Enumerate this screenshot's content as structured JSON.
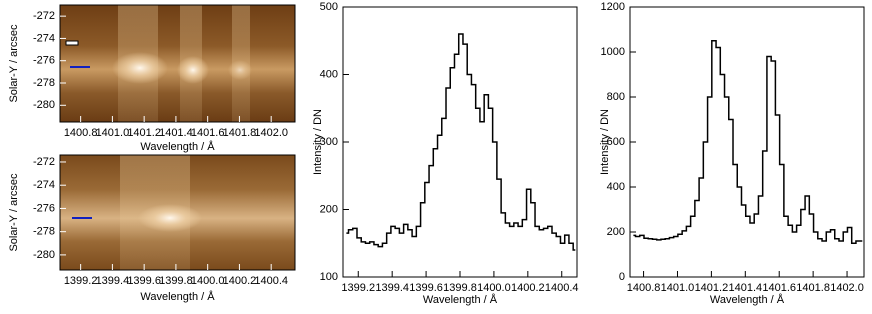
{
  "chart_data": [
    {
      "type": "image",
      "xlabel": "Wavelength / Å",
      "ylabel": "Solar-Y / arcsec",
      "xlim": [
        1400.67,
        1402.15
      ],
      "ylim": [
        -281.5,
        -271
      ],
      "xticks": [
        1400.8,
        {
          "value": 1401,
          "label": "1401.0"
        },
        1401.2,
        1401.4,
        1401.6,
        1401.8,
        {
          "value": 1402,
          "label": "1402.0"
        }
      ],
      "yticks": [
        -272,
        -274,
        -276,
        -278,
        -280
      ]
    },
    {
      "type": "image",
      "xlabel": "Wavelength / Å",
      "ylabel": "Solar-Y / arcsec",
      "xlim": [
        1399.07,
        1400.55
      ],
      "ylim": [
        -281.3,
        -271.4
      ],
      "xticks": [
        1399.2,
        1399.4,
        1399.6,
        1399.8,
        {
          "value": 1400,
          "label": "1400.0"
        },
        1400.2,
        1400.4
      ],
      "yticks": [
        -272,
        -274,
        -276,
        -278,
        -280
      ]
    },
    {
      "type": "step",
      "xlabel": "Wavelength / Å",
      "ylabel": "Intensity / DN",
      "color": "#000000",
      "xlim": [
        1399.11,
        1400.49
      ],
      "ylim": [
        100,
        500
      ],
      "xticks": [
        1399.2,
        1399.4,
        1399.6,
        1399.8,
        {
          "value": 1400,
          "label": "1400.0"
        },
        1400.2,
        1400.4
      ],
      "yticks": [
        100,
        200,
        300,
        400,
        500
      ],
      "x": [
        1399.13,
        1399.155,
        1399.18,
        1399.205,
        1399.23,
        1399.255,
        1399.28,
        1399.305,
        1399.33,
        1399.355,
        1399.38,
        1399.405,
        1399.43,
        1399.455,
        1399.48,
        1399.505,
        1399.53,
        1399.555,
        1399.58,
        1399.605,
        1399.63,
        1399.655,
        1399.68,
        1399.705,
        1399.73,
        1399.755,
        1399.78,
        1399.805,
        1399.83,
        1399.855,
        1399.88,
        1399.905,
        1399.93,
        1399.955,
        1399.98,
        1400.005,
        1400.03,
        1400.055,
        1400.08,
        1400.105,
        1400.13,
        1400.155,
        1400.18,
        1400.205,
        1400.23,
        1400.255,
        1400.28,
        1400.305,
        1400.33,
        1400.355,
        1400.38,
        1400.405,
        1400.43,
        1400.455,
        1400.48
      ],
      "values": [
        165,
        170,
        172,
        158,
        152,
        150,
        152,
        148,
        145,
        150,
        165,
        175,
        172,
        165,
        178,
        170,
        160,
        175,
        210,
        240,
        265,
        290,
        310,
        335,
        380,
        410,
        430,
        460,
        445,
        400,
        385,
        350,
        330,
        370,
        350,
        300,
        245,
        195,
        180,
        175,
        180,
        175,
        185,
        230,
        210,
        175,
        170,
        172,
        175,
        165,
        160,
        150,
        162,
        150,
        140
      ]
    },
    {
      "type": "step",
      "xlabel": "Wavelength / Å",
      "ylabel": "Intensity / DN",
      "color": "#000000",
      "xlim": [
        1400.72,
        1402.1
      ],
      "ylim": [
        0,
        1200
      ],
      "xticks": [
        1400.8,
        {
          "value": 1401,
          "label": "1401.0"
        },
        1401.2,
        1401.4,
        1401.6,
        1401.8,
        {
          "value": 1402,
          "label": "1402.0"
        }
      ],
      "yticks": [
        0,
        200,
        400,
        600,
        800,
        1000,
        1200
      ],
      "x": [
        1400.74,
        1400.765,
        1400.79,
        1400.815,
        1400.84,
        1400.865,
        1400.89,
        1400.915,
        1400.94,
        1400.965,
        1400.99,
        1401.015,
        1401.04,
        1401.065,
        1401.09,
        1401.115,
        1401.14,
        1401.165,
        1401.19,
        1401.215,
        1401.24,
        1401.265,
        1401.29,
        1401.315,
        1401.34,
        1401.365,
        1401.39,
        1401.415,
        1401.44,
        1401.465,
        1401.49,
        1401.515,
        1401.54,
        1401.565,
        1401.59,
        1401.615,
        1401.64,
        1401.665,
        1401.69,
        1401.715,
        1401.74,
        1401.765,
        1401.79,
        1401.815,
        1401.84,
        1401.865,
        1401.89,
        1401.915,
        1401.94,
        1401.965,
        1401.99,
        1402.015,
        1402.04,
        1402.065,
        1402.09
      ],
      "values": [
        185,
        180,
        185,
        172,
        170,
        168,
        165,
        168,
        170,
        175,
        180,
        190,
        205,
        225,
        270,
        340,
        440,
        600,
        800,
        1050,
        1020,
        900,
        800,
        700,
        500,
        400,
        320,
        270,
        240,
        280,
        360,
        560,
        980,
        960,
        720,
        500,
        270,
        230,
        200,
        230,
        300,
        360,
        280,
        200,
        170,
        160,
        200,
        210,
        170,
        160,
        200,
        220,
        150,
        160,
        160
      ]
    }
  ]
}
